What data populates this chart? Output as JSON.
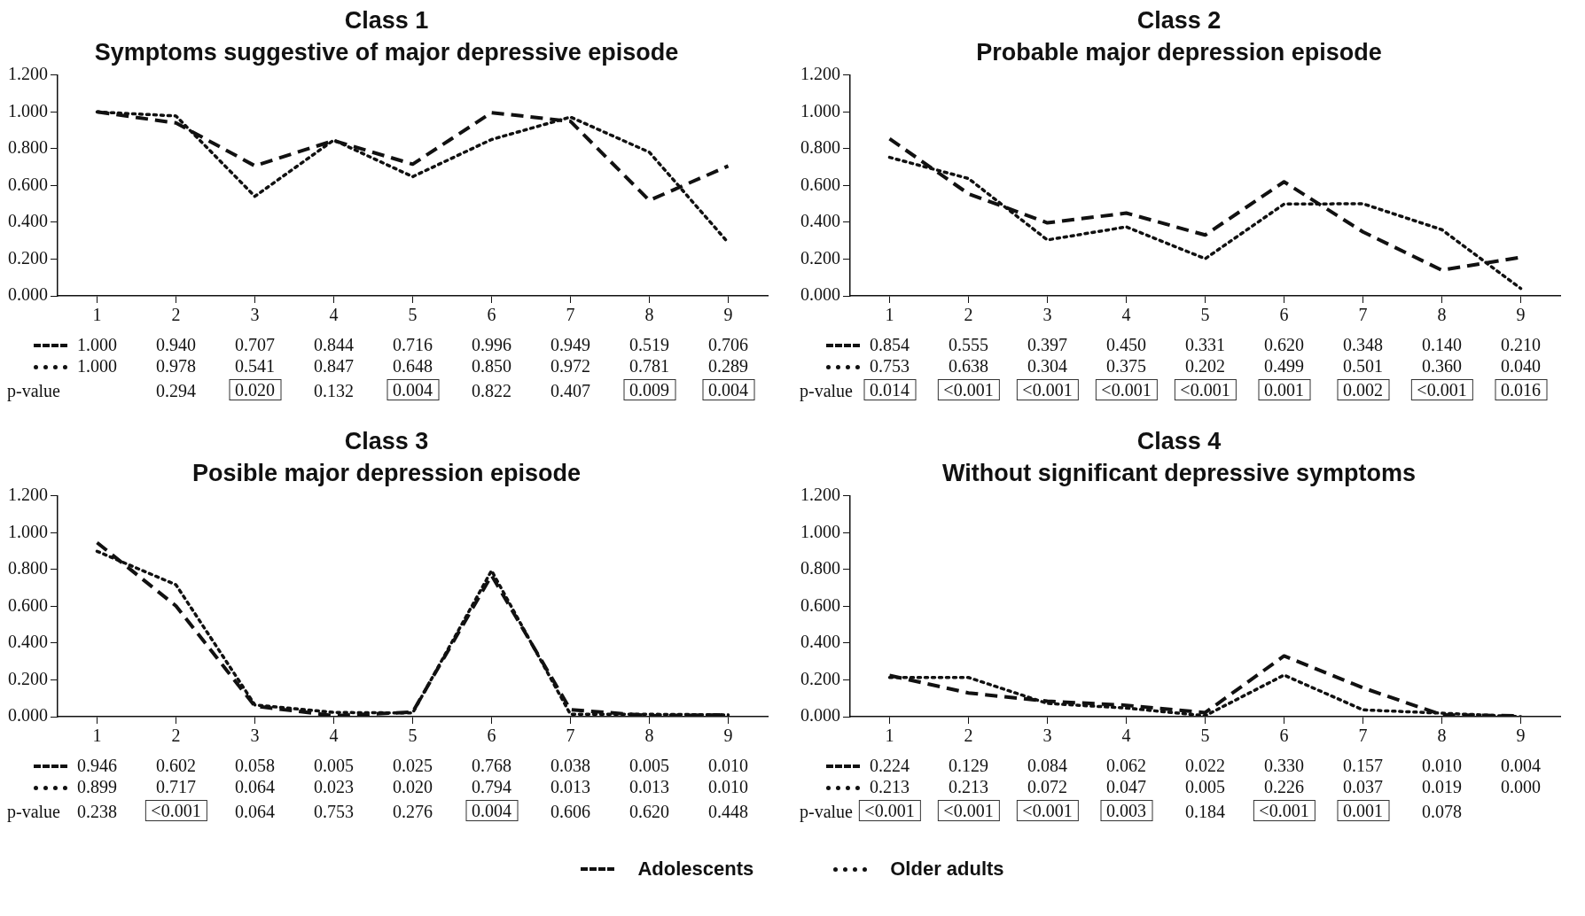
{
  "chart_data": [
    {
      "type": "line",
      "title": "Class 1",
      "subtitle": "Symptoms suggestive of major depressive episode",
      "categories": [
        "1",
        "2",
        "3",
        "4",
        "5",
        "6",
        "7",
        "8",
        "9"
      ],
      "series": [
        {
          "color": "#111111",
          "line_style": "dashed",
          "values": [
            1.0,
            0.94,
            0.707,
            0.844,
            0.716,
            0.996,
            0.949,
            0.519,
            0.706
          ],
          "value_labels": [
            "1.000",
            "0.940",
            "0.707",
            "0.844",
            "0.716",
            "0.996",
            "0.949",
            "0.519",
            "0.706"
          ]
        },
        {
          "color": "#111111",
          "line_style": "dotted",
          "values": [
            1.0,
            0.978,
            0.541,
            0.847,
            0.648,
            0.85,
            0.972,
            0.781,
            0.289
          ],
          "value_labels": [
            "1.000",
            "0.978",
            "0.541",
            "0.847",
            "0.648",
            "0.850",
            "0.972",
            "0.781",
            "0.289"
          ]
        }
      ],
      "ylim": [
        0,
        1.2
      ],
      "yticks": [
        {
          "value": 0,
          "label": "0.000"
        },
        {
          "value": 0.2,
          "label": "0.200"
        },
        {
          "value": 0.4,
          "label": "0.400"
        },
        {
          "value": 0.6,
          "label": "0.600"
        },
        {
          "value": 0.8,
          "label": "0.800"
        },
        {
          "value": 1,
          "label": "1.000"
        },
        {
          "value": 1.2,
          "label": "1.200"
        }
      ],
      "grid": false,
      "marker": "none",
      "legend": false,
      "annotations": [
        "p-value",
        null,
        "0.294",
        "0.020",
        "0.132",
        "0.004",
        "0.822",
        "0.407",
        "0.009",
        "0.004"
      ]
    },
    {
      "type": "line",
      "title": "Class 2",
      "subtitle": "Probable major depression episode",
      "categories": [
        "1",
        "2",
        "3",
        "4",
        "5",
        "6",
        "7",
        "8",
        "9"
      ],
      "series": [
        {
          "color": "#111111",
          "line_style": "dashed",
          "values": [
            0.854,
            0.555,
            0.397,
            0.45,
            0.331,
            0.62,
            0.348,
            0.14,
            0.21
          ],
          "value_labels": [
            "0.854",
            "0.555",
            "0.397",
            "0.450",
            "0.331",
            "0.620",
            "0.348",
            "0.140",
            "0.210"
          ]
        },
        {
          "color": "#111111",
          "line_style": "dotted",
          "values": [
            0.753,
            0.638,
            0.304,
            0.375,
            0.202,
            0.499,
            0.501,
            0.36,
            0.04
          ],
          "value_labels": [
            "0.753",
            "0.638",
            "0.304",
            "0.375",
            "0.202",
            "0.499",
            "0.501",
            "0.360",
            "0.040"
          ]
        }
      ],
      "ylim": [
        0,
        1.2
      ],
      "yticks": [
        {
          "value": 0,
          "label": "0.000"
        },
        {
          "value": 0.2,
          "label": "0.200"
        },
        {
          "value": 0.4,
          "label": "0.400"
        },
        {
          "value": 0.6,
          "label": "0.600"
        },
        {
          "value": 0.8,
          "label": "0.800"
        },
        {
          "value": 1,
          "label": "1.000"
        },
        {
          "value": 1.2,
          "label": "1.200"
        }
      ],
      "grid": false,
      "marker": "none",
      "legend": false,
      "annotations": [
        "p-value",
        "0.014",
        "<0.001",
        "<0.001",
        "<0.001",
        "<0.001",
        "0.001",
        "0.002",
        "<0.001",
        "0.016"
      ]
    },
    {
      "type": "line",
      "title": "Class 3",
      "subtitle": "Posible major depression episode",
      "categories": [
        "1",
        "2",
        "3",
        "4",
        "5",
        "6",
        "7",
        "8",
        "9"
      ],
      "series": [
        {
          "color": "#111111",
          "line_style": "dashed",
          "values": [
            0.946,
            0.602,
            0.058,
            0.005,
            0.025,
            0.768,
            0.038,
            0.005,
            0.01
          ],
          "value_labels": [
            "0.946",
            "0.602",
            "0.058",
            "0.005",
            "0.025",
            "0.768",
            "0.038",
            "0.005",
            "0.010"
          ]
        },
        {
          "color": "#111111",
          "line_style": "dotted",
          "values": [
            0.899,
            0.717,
            0.064,
            0.023,
            0.02,
            0.794,
            0.013,
            0.013,
            0.01
          ],
          "value_labels": [
            "0.899",
            "0.717",
            "0.064",
            "0.023",
            "0.020",
            "0.794",
            "0.013",
            "0.013",
            "0.010"
          ]
        }
      ],
      "ylim": [
        0,
        1.2
      ],
      "yticks": [
        {
          "value": 0,
          "label": "0.000"
        },
        {
          "value": 0.2,
          "label": "0.200"
        },
        {
          "value": 0.4,
          "label": "0.400"
        },
        {
          "value": 0.6,
          "label": "0.600"
        },
        {
          "value": 0.8,
          "label": "0.800"
        },
        {
          "value": 1,
          "label": "1.000"
        },
        {
          "value": 1.2,
          "label": "1.200"
        }
      ],
      "grid": false,
      "marker": "none",
      "legend": false,
      "annotations": [
        "p-value",
        "0.238",
        "<0.001",
        "0.064",
        "0.753",
        "0.276",
        "0.004",
        "0.606",
        "0.620",
        "0.448"
      ]
    },
    {
      "type": "line",
      "title": "Class 4",
      "subtitle": "Without significant depressive symptoms",
      "categories": [
        "1",
        "2",
        "3",
        "4",
        "5",
        "6",
        "7",
        "8",
        "9"
      ],
      "series": [
        {
          "name": "Adolescents",
          "color": "#111111",
          "line_style": "dashed",
          "values": [
            0.224,
            0.129,
            0.084,
            0.062,
            0.022,
            0.33,
            0.157,
            0.01,
            0.004
          ],
          "value_labels": [
            "0.224",
            "0.129",
            "0.084",
            "0.062",
            "0.022",
            "0.330",
            "0.157",
            "0.010",
            "0.004"
          ]
        },
        {
          "name": "Older adults",
          "color": "#111111",
          "line_style": "dotted",
          "values": [
            0.213,
            0.213,
            0.072,
            0.047,
            0.005,
            0.226,
            0.037,
            0.019,
            0.0
          ],
          "value_labels": [
            "0.213",
            "0.213",
            "0.072",
            "0.047",
            "0.005",
            "0.226",
            "0.037",
            "0.019",
            "0.000"
          ]
        }
      ],
      "ylim": [
        0,
        1.2
      ],
      "yticks": [
        {
          "value": 0,
          "label": "0.000"
        },
        {
          "value": 0.2,
          "label": "0.200"
        },
        {
          "value": 0.4,
          "label": "0.400"
        },
        {
          "value": 0.6,
          "label": "0.600"
        },
        {
          "value": 0.8,
          "label": "0.800"
        },
        {
          "value": 1,
          "label": "1.000"
        },
        {
          "value": 1.2,
          "label": "1.200"
        }
      ],
      "grid": false,
      "marker": "none",
      "legend": "bottom",
      "annotations": [
        "p-value",
        "<0.001",
        "<0.001",
        "<0.001",
        "0.003",
        "0.184",
        "<0.001",
        "0.001",
        "0.078"
      ]
    }
  ]
}
